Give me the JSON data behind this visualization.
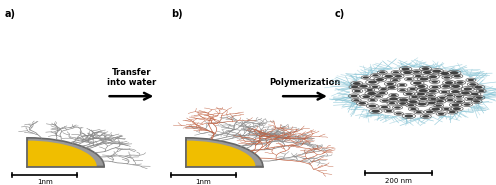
{
  "bg_color": "#ffffff",
  "panel_labels": [
    "a)",
    "b)",
    "c)"
  ],
  "arrow1_text": "Transfer\ninto water",
  "arrow2_text": "Polymerization",
  "scalebar_a": "1nm",
  "scalebar_b": "1nm",
  "scalebar_c": "200 nm",
  "qd_yellow": "#F0BE00",
  "qd_gray": "#999999",
  "qd_dark": "#666666",
  "ligand_gray": "#888888",
  "ligand_red": "#c06040",
  "polymer_blue": "#90c8d8",
  "dot_fill": "#404040",
  "dot_ring": "#606060"
}
